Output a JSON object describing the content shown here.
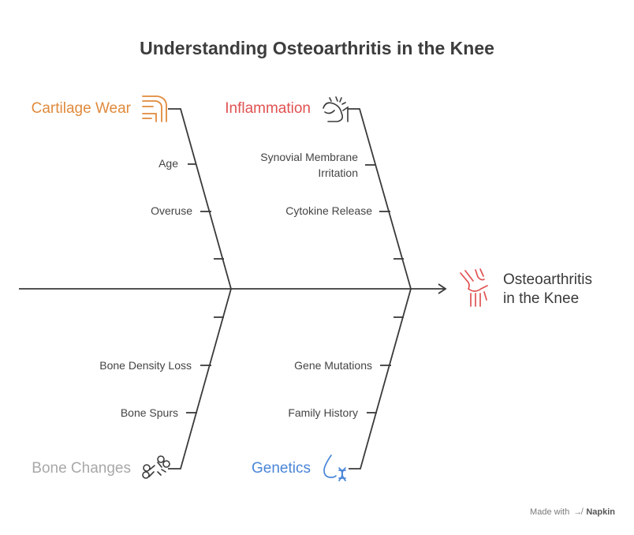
{
  "title": "Understanding Osteoarthritis in the Knee",
  "effect": "Osteoarthritis\nin the Knee",
  "categories": {
    "cartilage": {
      "label": "Cartilage Wear",
      "color": "#e08a3c",
      "icon": "knee-joint-icon",
      "causes": [
        "Age",
        "Overuse"
      ]
    },
    "inflammation": {
      "label": "Inflammation",
      "color": "#e05252",
      "icon": "inflamed-joint-icon",
      "causes": [
        "Synovial Membrane Irritation",
        "Cytokine Release"
      ]
    },
    "bone": {
      "label": "Bone Changes",
      "color": "#a8a8a8",
      "icon": "broken-bone-icon",
      "causes": [
        "Bone Density Loss",
        "Bone Spurs"
      ]
    },
    "genetics": {
      "label": "Genetics",
      "color": "#4a86d8",
      "icon": "dna-drop-icon",
      "causes": [
        "Gene Mutations",
        "Family History"
      ]
    }
  },
  "effect_icon": "knee-bones-icon",
  "footer": {
    "made_with": "Made with",
    "brand": "Napkin"
  }
}
